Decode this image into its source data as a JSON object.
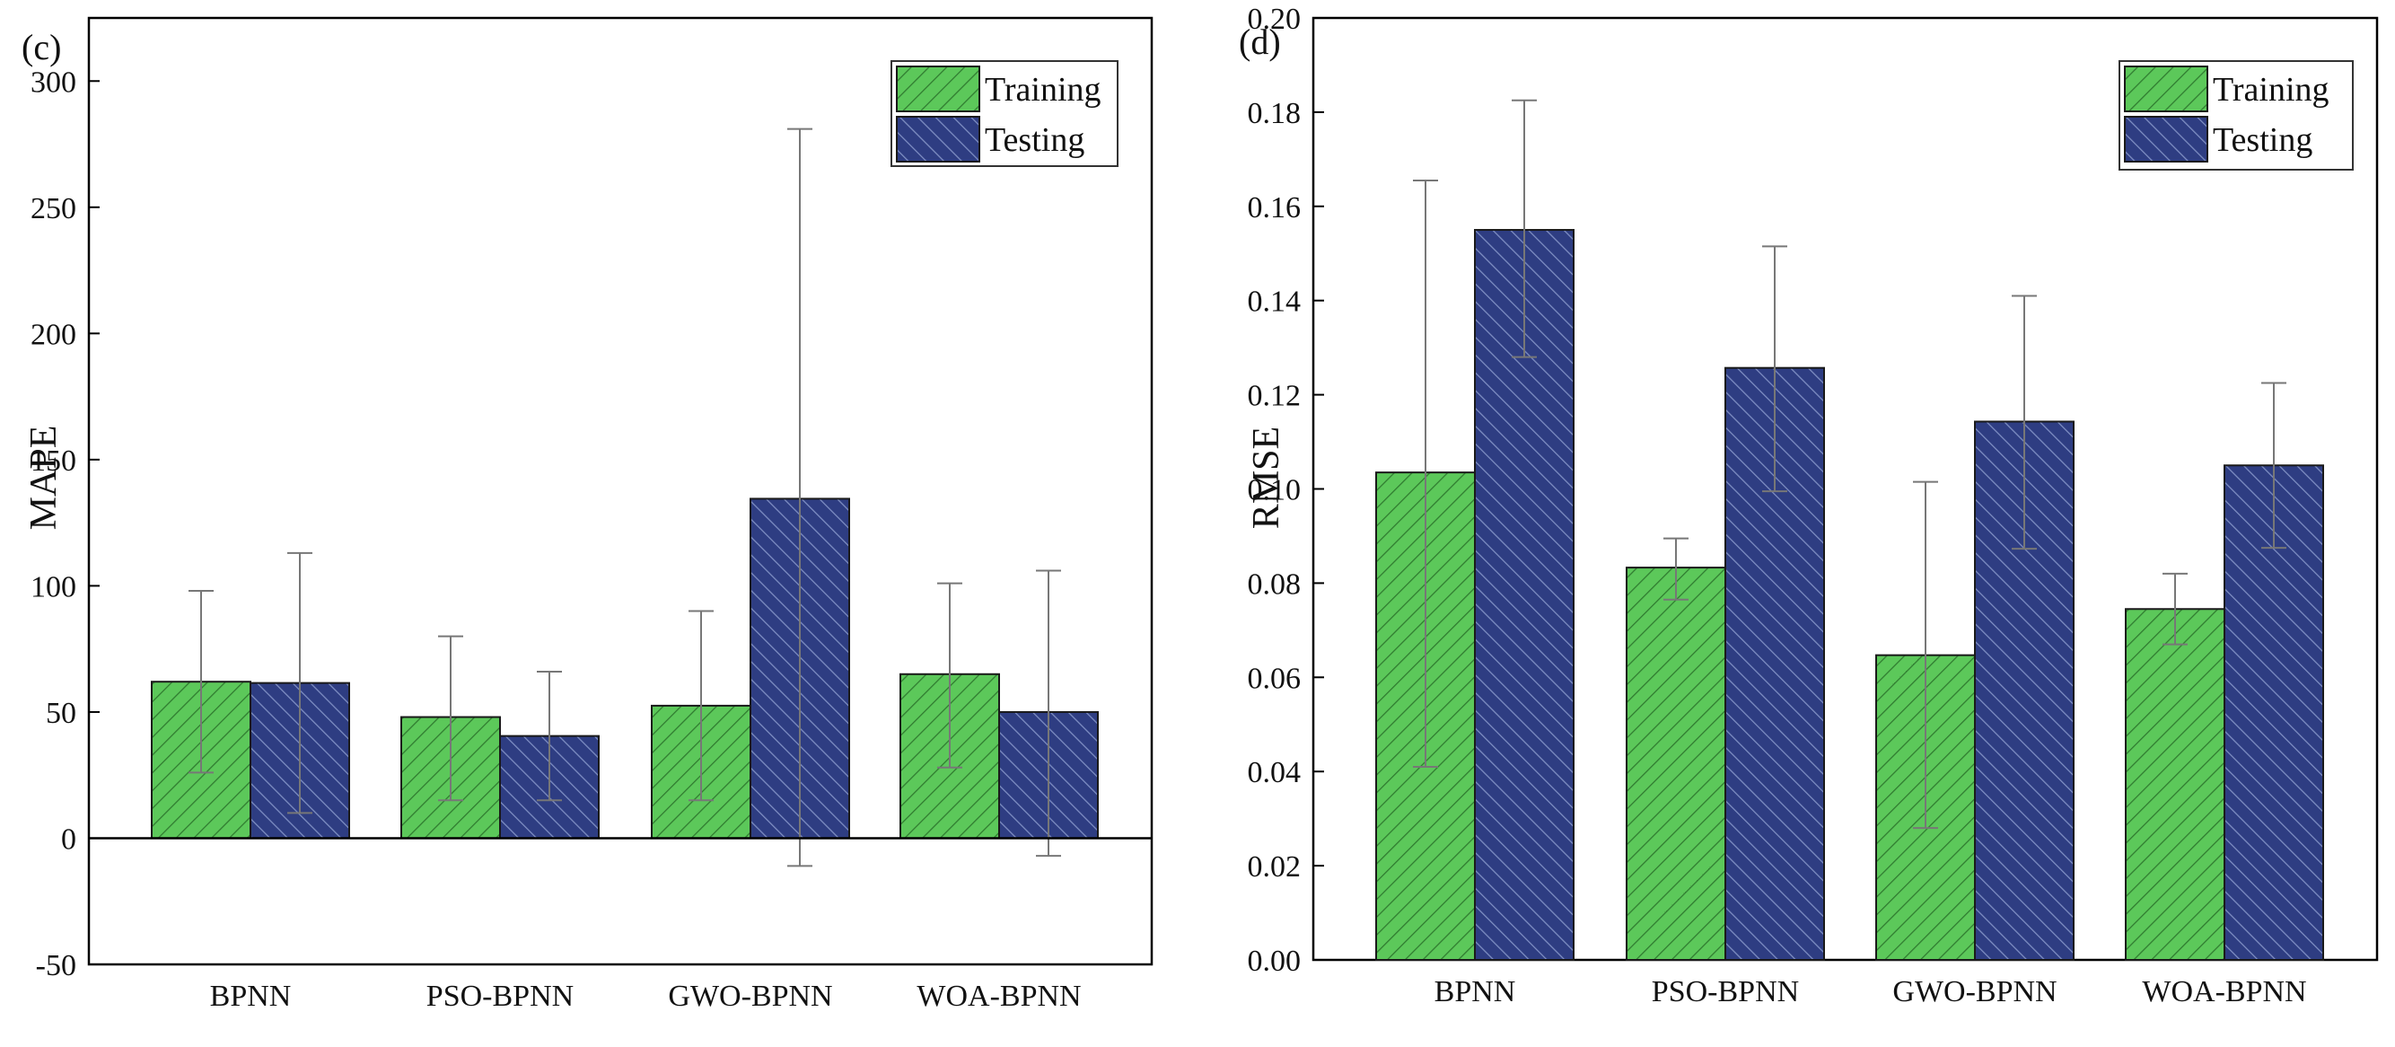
{
  "colors": {
    "training": "#5cc85a",
    "testing": "#2e3d82",
    "training_hatch": "#2f7a2f",
    "testing_hatch": "#8090c4",
    "axis": "#000000",
    "errorbar": "#777777"
  },
  "chart_data": [
    {
      "type": "bar",
      "panel_label": "(c)",
      "ylabel": "MAPE",
      "categories": [
        "BPNN",
        "PSO-BPNN",
        "GWO-BPNN",
        "WOA-BPNN"
      ],
      "ylim": [
        -50,
        325
      ],
      "yticks": [
        -50,
        0,
        50,
        100,
        150,
        200,
        250,
        300
      ],
      "ytick_labels": [
        "-50",
        "0",
        "50",
        "100",
        "150",
        "200",
        "250",
        "300"
      ],
      "zero_line": true,
      "legend": {
        "position": "top-right",
        "entries": [
          "Training",
          "Testing"
        ]
      },
      "series": [
        {
          "name": "Training",
          "values": [
            62,
            48,
            52.5,
            65
          ],
          "err_low": [
            26,
            15,
            15,
            28
          ],
          "err_high": [
            98,
            80,
            90,
            101
          ]
        },
        {
          "name": "Testing",
          "values": [
            61.5,
            40.5,
            134.5,
            50
          ],
          "err_low": [
            10,
            15,
            -11,
            -7
          ],
          "err_high": [
            113,
            66,
            281,
            106
          ]
        }
      ]
    },
    {
      "type": "bar",
      "panel_label": "(d)",
      "ylabel": "RMSE",
      "categories": [
        "BPNN",
        "PSO-BPNN",
        "GWO-BPNN",
        "WOA-BPNN"
      ],
      "ylim": [
        0,
        0.2
      ],
      "yticks": [
        0,
        0.02,
        0.04,
        0.06,
        0.08,
        0.1,
        0.12,
        0.14,
        0.16,
        0.18,
        0.2
      ],
      "ytick_labels": [
        "0.00",
        "0.02",
        "0.04",
        "0.06",
        "0.08",
        "0.10",
        "0.12",
        "0.14",
        "0.16",
        "0.18",
        "0.20"
      ],
      "zero_line": false,
      "legend": {
        "position": "top-right",
        "entries": [
          "Training",
          "Testing"
        ]
      },
      "series": [
        {
          "name": "Training",
          "values": [
            0.1035,
            0.0833,
            0.0647,
            0.0745
          ],
          "err_low": [
            0.041,
            0.0765,
            0.028,
            0.067
          ],
          "err_high": [
            0.1655,
            0.0895,
            0.1015,
            0.082
          ]
        },
        {
          "name": "Testing",
          "values": [
            0.155,
            0.1257,
            0.1143,
            0.105
          ],
          "err_low": [
            0.128,
            0.0995,
            0.0873,
            0.0875
          ],
          "err_high": [
            0.1825,
            0.1515,
            0.141,
            0.1225
          ]
        }
      ]
    }
  ]
}
